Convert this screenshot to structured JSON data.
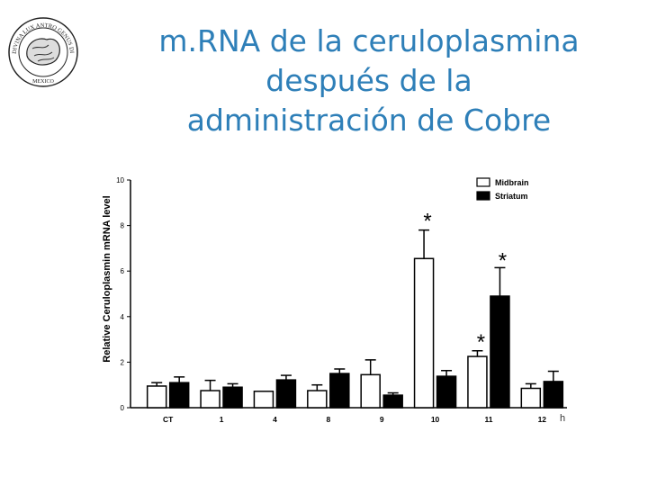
{
  "header": {
    "title_lines": [
      "m.RNA de la ceruloplasmina",
      "después de la",
      "administración de Cobre"
    ],
    "logo_text_top": "DIVINA LUX ANTRO GENUS DIRECTE",
    "logo_text_bottom": "MEXICO"
  },
  "colors": {
    "title": "#2e7fb8",
    "bars": "#000000",
    "midbrain_fill": "#ffffff",
    "striatum_fill": "#000000"
  },
  "chart_data": {
    "type": "bar",
    "ylabel": "Relative Ceruloplasmin mRNA level",
    "xlabel": "h",
    "ylim": [
      0,
      10
    ],
    "yticks": [
      0,
      2,
      4,
      6,
      8,
      10
    ],
    "categories": [
      "CT",
      "1",
      "4",
      "8",
      "9",
      "10",
      "11",
      "12"
    ],
    "legend_position": "top-right",
    "series": [
      {
        "name": "Midbrain",
        "values": [
          0.95,
          0.75,
          0.72,
          0.75,
          1.45,
          6.55,
          2.25,
          0.85
        ],
        "errors": [
          0.15,
          0.45,
          0.0,
          0.25,
          0.65,
          1.25,
          0.25,
          0.2
        ],
        "sig": [
          false,
          false,
          false,
          false,
          false,
          true,
          true,
          false
        ]
      },
      {
        "name": "Striatum",
        "values": [
          1.1,
          0.9,
          1.22,
          1.5,
          0.55,
          1.38,
          4.9,
          1.15
        ],
        "errors": [
          0.25,
          0.15,
          0.2,
          0.2,
          0.1,
          0.25,
          1.25,
          0.45
        ],
        "sig": [
          false,
          false,
          false,
          false,
          false,
          false,
          true,
          false
        ]
      }
    ],
    "significance_marker": "*"
  }
}
